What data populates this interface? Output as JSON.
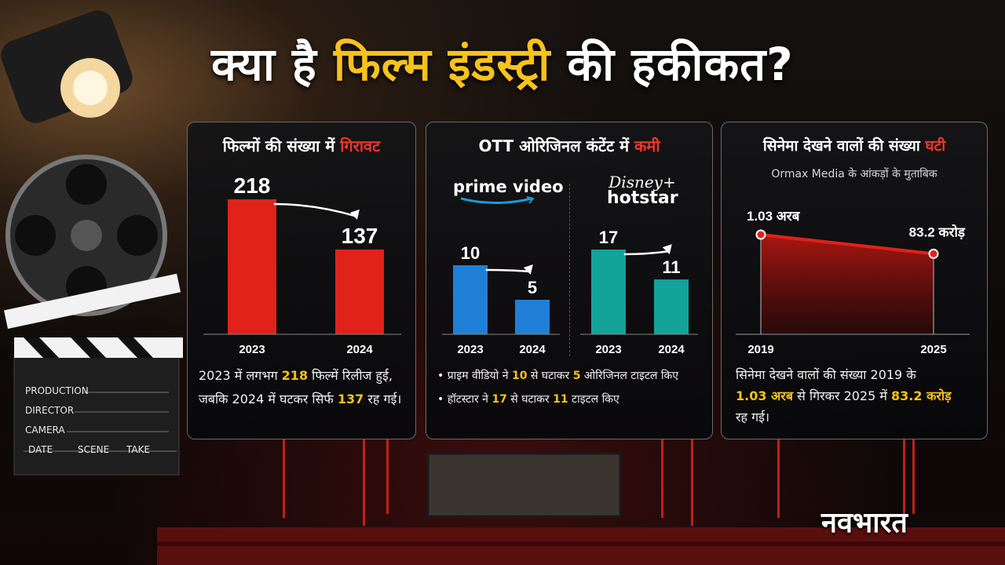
{
  "title": {
    "part1": "क्या है",
    "highlight": "फिल्म इंडस्ट्री",
    "part2": "की हकीकत?"
  },
  "brand": "नवभारत",
  "clapper": {
    "lines": [
      "PRODUCTION",
      "DIRECTOR",
      "CAMERA"
    ],
    "bottom": [
      "DATE",
      "SCENE",
      "TAKE"
    ]
  },
  "panel1": {
    "title_a": "फिल्मों की संख्या में",
    "title_b": "गिरावट",
    "desc": {
      "a": "2023 में लगभग",
      "n1": "218",
      "b": "फिल्में रिलीज हुई,",
      "c": "जबकि 2024 में घटकर सिर्फ",
      "n2": "137",
      "d": "रह गई।"
    }
  },
  "panel2": {
    "title_a": "OTT ओरिजिनल कंटेंट में",
    "title_b": "कमी",
    "logo_prime": "prime video",
    "logo_disney_a": "Disney+",
    "logo_disney_b": "hotstar",
    "bullet1": {
      "a": "• प्राइम वीडियो ने",
      "n1": "10",
      "b": "से घटाकर",
      "n2": "5",
      "c": "ओरिजिनल टाइटल किए"
    },
    "bullet2": {
      "a": "• हॉटस्टार ने",
      "n1": "17",
      "b": "से घटाकर",
      "n2": "11",
      "c": "टाइटल किए"
    }
  },
  "panel3": {
    "title_a": "सिनेमा देखने वालों की संख्या",
    "title_b": "घटी",
    "subtitle": "Ormax Media के आंकड़ों के मुताबिक",
    "desc": {
      "a": "सिनेमा देखने वालों की संख्या 2019 के",
      "n1": "1.03 अरब",
      "b": "से गिरकर 2025 में",
      "n2": "83.2 करोड़",
      "c": "रह गई।"
    }
  },
  "chart_data": [
    {
      "type": "bar",
      "categories": [
        "2023",
        "2024"
      ],
      "values": [
        218,
        137
      ],
      "value_labels": [
        "218",
        "137"
      ],
      "color": "#e0221a"
    },
    {
      "type": "bar",
      "categories": [
        "2023",
        "2024"
      ],
      "values": [
        10,
        5
      ],
      "value_labels": [
        "10",
        "5"
      ],
      "color": "#1f7fd6"
    },
    {
      "type": "bar",
      "categories": [
        "2023",
        "2024"
      ],
      "values": [
        17,
        11
      ],
      "value_labels": [
        "17",
        "11"
      ],
      "color": "#13a39a"
    },
    {
      "type": "area",
      "x": [
        "2019",
        "2025"
      ],
      "values": [
        103,
        83.2
      ],
      "value_labels": [
        "1.03 अरब",
        "83.2 करोड़"
      ],
      "color": "#e0221a"
    }
  ]
}
